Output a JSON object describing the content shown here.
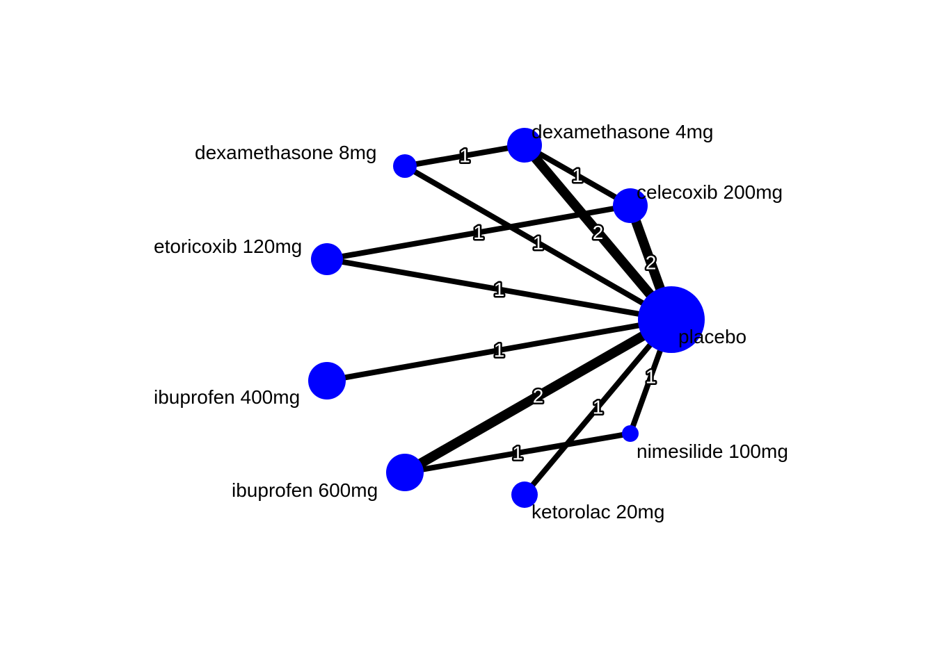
{
  "colors": {
    "node": "#0000ff",
    "edge": "#000000",
    "edge_label_fill": "#ffffff",
    "edge_label_outline": "#000000",
    "background": "#ffffff"
  },
  "nodes": [
    {
      "id": "dex8",
      "label": "dexamethasone 8mg"
    },
    {
      "id": "dex4",
      "label": "dexamethasone 4mg"
    },
    {
      "id": "cel200",
      "label": "celecoxib 200mg"
    },
    {
      "id": "eto120",
      "label": "etoricoxib 120mg"
    },
    {
      "id": "placebo",
      "label": "placebo"
    },
    {
      "id": "ibu400",
      "label": "ibuprofen 400mg"
    },
    {
      "id": "ibu600",
      "label": "ibuprofen 600mg"
    },
    {
      "id": "nim100",
      "label": "nimesilide 100mg"
    },
    {
      "id": "ket20",
      "label": "ketorolac 20mg"
    }
  ],
  "edges": [
    {
      "from": "dex8",
      "to": "dex4",
      "studies": "1"
    },
    {
      "from": "dex8",
      "to": "placebo",
      "studies": "1"
    },
    {
      "from": "dex4",
      "to": "cel200",
      "studies": "1"
    },
    {
      "from": "dex4",
      "to": "placebo",
      "studies": "2"
    },
    {
      "from": "cel200",
      "to": "placebo",
      "studies": "2"
    },
    {
      "from": "eto120",
      "to": "cel200",
      "studies": "1"
    },
    {
      "from": "eto120",
      "to": "placebo",
      "studies": "1"
    },
    {
      "from": "ibu400",
      "to": "placebo",
      "studies": "1"
    },
    {
      "from": "ibu600",
      "to": "placebo",
      "studies": "2"
    },
    {
      "from": "ibu600",
      "to": "nim100",
      "studies": "1"
    },
    {
      "from": "ket20",
      "to": "placebo",
      "studies": "1"
    },
    {
      "from": "nim100",
      "to": "placebo",
      "studies": "1"
    }
  ]
}
